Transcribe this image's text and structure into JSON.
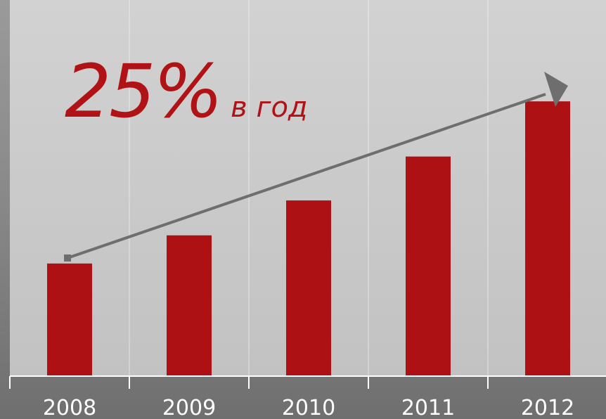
{
  "chart_data": {
    "type": "bar",
    "categories": [
      "2008",
      "2009",
      "2010",
      "2011",
      "2012"
    ],
    "values": [
      1.0,
      1.25,
      1.56,
      1.95,
      2.44
    ],
    "ylim": [
      0,
      3.34
    ],
    "grid": "vertical",
    "annotation": {
      "big": "25%",
      "small": "в год"
    },
    "colors": {
      "bar": "#ad1114",
      "trend": "#6e6e6e",
      "text": "#ffffff"
    }
  }
}
